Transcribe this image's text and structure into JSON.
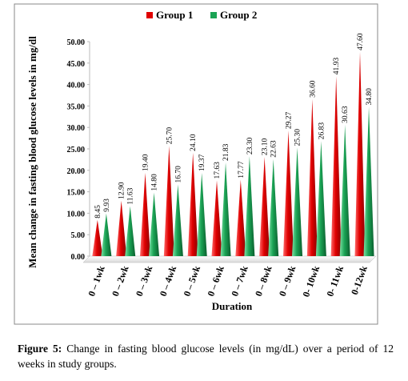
{
  "chart_data": {
    "type": "bar",
    "y_label": "Mean change in fasting blood glucose levels in mg/dl",
    "x_label": "Duration",
    "categories": [
      "0 – 1wk",
      "0 – 2wk",
      "0 – 3wk",
      "0 – 4wk",
      "0 – 5wk",
      "0 – 6wk",
      "0 – 7wk",
      "0 – 8wk",
      "0 – 9wk",
      "0- 10wk",
      "0- 11wk",
      "0-12wk"
    ],
    "series": [
      {
        "name": "Group 1",
        "color": "#e00000",
        "values": [
          8.45,
          12.9,
          19.4,
          25.7,
          24.1,
          17.63,
          17.77,
          23.1,
          29.27,
          36.6,
          41.93,
          47.6
        ],
        "value_labels": [
          "8.45",
          "12.90",
          "19.40",
          "25.70",
          "24.10",
          "17.63",
          "17.77",
          "23.10",
          "29.27",
          "36.60",
          "41.93",
          "47.60"
        ]
      },
      {
        "name": "Group 2",
        "color": "#1aa354",
        "values": [
          9.93,
          11.63,
          14.8,
          16.7,
          19.37,
          21.83,
          23.3,
          22.63,
          25.3,
          26.83,
          30.63,
          34.8
        ],
        "value_labels": [
          "9.93",
          "11.63",
          "14.80",
          "16.70",
          "19.37",
          "21.83",
          "23.30",
          "22.63",
          "25.30",
          "26.83",
          "30.63",
          "34.80"
        ]
      }
    ],
    "ylim": [
      0,
      50
    ],
    "yticks": [
      {
        "value": 0,
        "label": "0.00"
      },
      {
        "value": 5,
        "label": "5.00"
      },
      {
        "value": 10,
        "label": "10.00"
      },
      {
        "value": 15,
        "label": "15.00"
      },
      {
        "value": 20,
        "label": "20.00"
      },
      {
        "value": 25,
        "label": "25.00"
      },
      {
        "value": 30,
        "label": "30.00"
      },
      {
        "value": 35,
        "label": "35.00"
      },
      {
        "value": 40,
        "label": "40.00"
      },
      {
        "value": 45,
        "label": "45.00"
      },
      {
        "value": 50,
        "label": "50.00"
      }
    ],
    "grid": false,
    "legend": "top"
  },
  "caption": {
    "label": "Figure 5:",
    "text": "Change in fasting blood glucose levels (in mg/dL) over a period of 12 weeks in study groups."
  }
}
